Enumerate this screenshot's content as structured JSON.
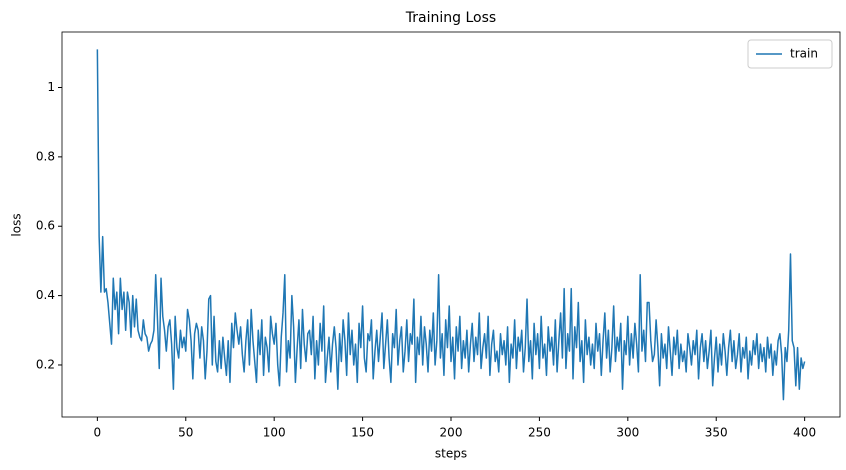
{
  "chart_data": {
    "type": "line",
    "title": "Training Loss",
    "x_label": "steps",
    "y_label": "loss",
    "legend": "upper right",
    "x": [
      0,
      1,
      2,
      3,
      4,
      5,
      6,
      7,
      8,
      9,
      10,
      11,
      12,
      13,
      14,
      15,
      16,
      17,
      18,
      19,
      20,
      21,
      22,
      23,
      24,
      25,
      26,
      27,
      28,
      29,
      30,
      31,
      32,
      33,
      34,
      35,
      36,
      37,
      38,
      39,
      40,
      41,
      42,
      43,
      44,
      45,
      46,
      47,
      48,
      49,
      50,
      51,
      52,
      53,
      54,
      55,
      56,
      57,
      58,
      59,
      60,
      61,
      62,
      63,
      64,
      65,
      66,
      67,
      68,
      69,
      70,
      71,
      72,
      73,
      74,
      75,
      76,
      77,
      78,
      79,
      80,
      81,
      82,
      83,
      84,
      85,
      86,
      87,
      88,
      89,
      90,
      91,
      92,
      93,
      94,
      95,
      96,
      97,
      98,
      99,
      100,
      101,
      102,
      103,
      104,
      105,
      106,
      107,
      108,
      109,
      110,
      111,
      112,
      113,
      114,
      115,
      116,
      117,
      118,
      119,
      120,
      121,
      122,
      123,
      124,
      125,
      126,
      127,
      128,
      129,
      130,
      131,
      132,
      133,
      134,
      135,
      136,
      137,
      138,
      139,
      140,
      141,
      142,
      143,
      144,
      145,
      146,
      147,
      148,
      149,
      150,
      151,
      152,
      153,
      154,
      155,
      156,
      157,
      158,
      159,
      160,
      161,
      162,
      163,
      164,
      165,
      166,
      167,
      168,
      169,
      170,
      171,
      172,
      173,
      174,
      175,
      176,
      177,
      178,
      179,
      180,
      181,
      182,
      183,
      184,
      185,
      186,
      187,
      188,
      189,
      190,
      191,
      192,
      193,
      194,
      195,
      196,
      197,
      198,
      199,
      200,
      201,
      202,
      203,
      204,
      205,
      206,
      207,
      208,
      209,
      210,
      211,
      212,
      213,
      214,
      215,
      216,
      217,
      218,
      219,
      220,
      221,
      222,
      223,
      224,
      225,
      226,
      227,
      228,
      229,
      230,
      231,
      232,
      233,
      234,
      235,
      236,
      237,
      238,
      239,
      240,
      241,
      242,
      243,
      244,
      245,
      246,
      247,
      248,
      249,
      250,
      251,
      252,
      253,
      254,
      255,
      256,
      257,
      258,
      259,
      260,
      261,
      262,
      263,
      264,
      265,
      266,
      267,
      268,
      269,
      270,
      271,
      272,
      273,
      274,
      275,
      276,
      277,
      278,
      279,
      280,
      281,
      282,
      283,
      284,
      285,
      286,
      287,
      288,
      289,
      290,
      291,
      292,
      293,
      294,
      295,
      296,
      297,
      298,
      299,
      300,
      301,
      302,
      303,
      304,
      305,
      306,
      307,
      308,
      309,
      310,
      311,
      312,
      313,
      314,
      315,
      316,
      317,
      318,
      319,
      320,
      321,
      322,
      323,
      324,
      325,
      326,
      327,
      328,
      329,
      330,
      331,
      332,
      333,
      334,
      335,
      336,
      337,
      338,
      339,
      340,
      341,
      342,
      343,
      344,
      345,
      346,
      347,
      348,
      349,
      350,
      351,
      352,
      353,
      354,
      355,
      356,
      357,
      358,
      359,
      360,
      361,
      362,
      363,
      364,
      365,
      366,
      367,
      368,
      369,
      370,
      371,
      372,
      373,
      374,
      375,
      376,
      377,
      378,
      379,
      380,
      381,
      382,
      383,
      384,
      385,
      386,
      387,
      388,
      389,
      390,
      391,
      392,
      393,
      394,
      395,
      396,
      397,
      398,
      399,
      400
    ],
    "series": [
      {
        "name": "train",
        "color": "#1f77b4",
        "values": [
          1.11,
          0.57,
          0.41,
          0.57,
          0.41,
          0.42,
          0.38,
          0.32,
          0.26,
          0.45,
          0.36,
          0.41,
          0.29,
          0.45,
          0.36,
          0.41,
          0.3,
          0.41,
          0.38,
          0.28,
          0.4,
          0.31,
          0.39,
          0.3,
          0.28,
          0.27,
          0.33,
          0.29,
          0.28,
          0.24,
          0.26,
          0.27,
          0.3,
          0.46,
          0.33,
          0.19,
          0.45,
          0.34,
          0.3,
          0.24,
          0.31,
          0.33,
          0.26,
          0.13,
          0.34,
          0.25,
          0.22,
          0.3,
          0.25,
          0.28,
          0.24,
          0.36,
          0.33,
          0.27,
          0.16,
          0.29,
          0.32,
          0.3,
          0.22,
          0.31,
          0.27,
          0.16,
          0.24,
          0.39,
          0.4,
          0.2,
          0.34,
          0.21,
          0.18,
          0.27,
          0.19,
          0.28,
          0.22,
          0.17,
          0.27,
          0.15,
          0.32,
          0.25,
          0.35,
          0.3,
          0.26,
          0.31,
          0.23,
          0.18,
          0.27,
          0.33,
          0.2,
          0.36,
          0.27,
          0.21,
          0.15,
          0.3,
          0.23,
          0.33,
          0.17,
          0.28,
          0.25,
          0.18,
          0.34,
          0.29,
          0.26,
          0.32,
          0.2,
          0.14,
          0.28,
          0.35,
          0.46,
          0.18,
          0.27,
          0.22,
          0.4,
          0.31,
          0.15,
          0.25,
          0.33,
          0.19,
          0.36,
          0.26,
          0.21,
          0.29,
          0.3,
          0.23,
          0.34,
          0.16,
          0.27,
          0.2,
          0.32,
          0.24,
          0.37,
          0.15,
          0.22,
          0.28,
          0.18,
          0.26,
          0.31,
          0.25,
          0.13,
          0.29,
          0.21,
          0.33,
          0.27,
          0.17,
          0.35,
          0.23,
          0.3,
          0.2,
          0.26,
          0.15,
          0.32,
          0.25,
          0.37,
          0.22,
          0.18,
          0.29,
          0.27,
          0.33,
          0.16,
          0.24,
          0.3,
          0.21,
          0.28,
          0.35,
          0.19,
          0.26,
          0.33,
          0.22,
          0.15,
          0.29,
          0.25,
          0.36,
          0.2,
          0.27,
          0.31,
          0.18,
          0.24,
          0.33,
          0.21,
          0.29,
          0.26,
          0.39,
          0.15,
          0.28,
          0.23,
          0.34,
          0.2,
          0.31,
          0.26,
          0.18,
          0.3,
          0.24,
          0.35,
          0.2,
          0.27,
          0.46,
          0.22,
          0.29,
          0.17,
          0.33,
          0.25,
          0.37,
          0.21,
          0.28,
          0.16,
          0.31,
          0.24,
          0.34,
          0.19,
          0.27,
          0.22,
          0.3,
          0.18,
          0.26,
          0.32,
          0.21,
          0.28,
          0.23,
          0.35,
          0.19,
          0.25,
          0.29,
          0.22,
          0.34,
          0.17,
          0.26,
          0.3,
          0.21,
          0.24,
          0.18,
          0.29,
          0.23,
          0.27,
          0.2,
          0.31,
          0.15,
          0.26,
          0.22,
          0.33,
          0.19,
          0.28,
          0.24,
          0.3,
          0.18,
          0.25,
          0.39,
          0.21,
          0.27,
          0.16,
          0.32,
          0.23,
          0.29,
          0.19,
          0.34,
          0.22,
          0.26,
          0.17,
          0.31,
          0.24,
          0.28,
          0.2,
          0.33,
          0.18,
          0.27,
          0.35,
          0.22,
          0.42,
          0.19,
          0.29,
          0.24,
          0.42,
          0.16,
          0.31,
          0.25,
          0.38,
          0.21,
          0.27,
          0.15,
          0.33,
          0.23,
          0.28,
          0.2,
          0.26,
          0.19,
          0.32,
          0.24,
          0.29,
          0.17,
          0.27,
          0.35,
          0.22,
          0.3,
          0.18,
          0.25,
          0.37,
          0.21,
          0.28,
          0.24,
          0.32,
          0.13,
          0.27,
          0.23,
          0.34,
          0.2,
          0.29,
          0.22,
          0.32,
          0.26,
          0.18,
          0.46,
          0.24,
          0.3,
          0.21,
          0.38,
          0.38,
          0.27,
          0.21,
          0.23,
          0.33,
          0.25,
          0.14,
          0.29,
          0.22,
          0.26,
          0.19,
          0.31,
          0.24,
          0.17,
          0.28,
          0.23,
          0.3,
          0.19,
          0.26,
          0.21,
          0.24,
          0.18,
          0.29,
          0.25,
          0.2,
          0.27,
          0.23,
          0.3,
          0.16,
          0.25,
          0.29,
          0.21,
          0.27,
          0.19,
          0.24,
          0.3,
          0.14,
          0.22,
          0.28,
          0.18,
          0.26,
          0.2,
          0.29,
          0.24,
          0.17,
          0.25,
          0.3,
          0.21,
          0.27,
          0.19,
          0.23,
          0.29,
          0.18,
          0.25,
          0.22,
          0.28,
          0.16,
          0.24,
          0.2,
          0.27,
          0.23,
          0.29,
          0.19,
          0.26,
          0.21,
          0.25,
          0.18,
          0.28,
          0.22,
          0.26,
          0.17,
          0.24,
          0.2,
          0.27,
          0.29,
          0.23,
          0.1,
          0.25,
          0.21,
          0.3,
          0.52,
          0.27,
          0.25,
          0.14,
          0.25,
          0.13,
          0.22,
          0.19,
          0.21
        ]
      }
    ],
    "xlim": [
      -20,
      420
    ],
    "xticks": [
      0,
      50,
      100,
      150,
      200,
      250,
      300,
      350,
      400
    ],
    "ylim": [
      0.05,
      1.16
    ],
    "yticks": [
      0.2,
      0.4,
      0.6,
      0.8,
      1.0
    ]
  }
}
